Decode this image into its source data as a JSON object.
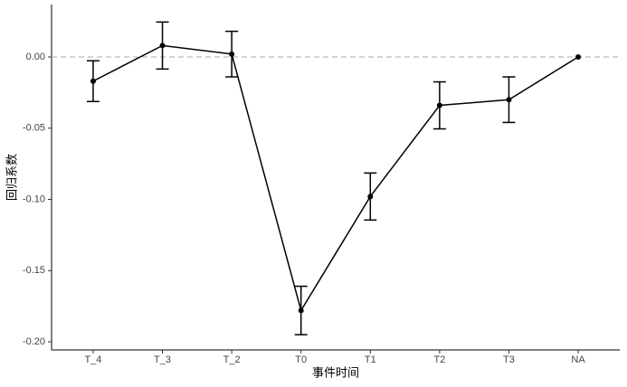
{
  "chart_data": {
    "type": "line",
    "x_label": "事件时间",
    "y_label": "回归系数",
    "categories": [
      "T_4",
      "T_3",
      "T_2",
      "T0",
      "T1",
      "T2",
      "T3",
      "NA"
    ],
    "values": [
      -0.017,
      0.008,
      0.002,
      -0.178,
      -0.098,
      -0.034,
      -0.03,
      0.0
    ],
    "errors": [
      0.0143,
      0.0165,
      0.016,
      0.017,
      0.0165,
      0.0165,
      0.016,
      null
    ],
    "color": "#000000",
    "hline": 0,
    "ylim": [
      -0.2057,
      0.0368
    ],
    "yticks": [
      {
        "value": 0,
        "label": "0.00"
      },
      {
        "value": -0.05,
        "label": "-0.05"
      },
      {
        "value": -0.1,
        "label": "-0.10"
      },
      {
        "value": -0.15,
        "label": "-0.15"
      },
      {
        "value": -0.2,
        "label": "-0.20"
      }
    ]
  }
}
